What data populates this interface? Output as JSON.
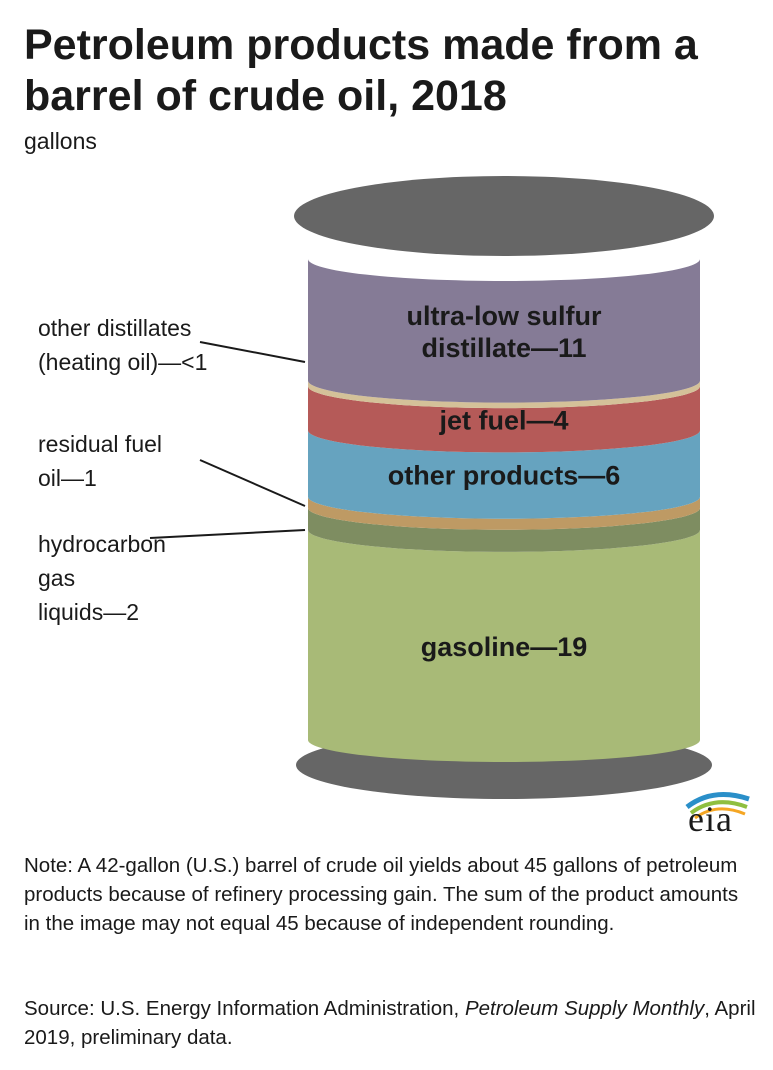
{
  "title": "Petroleum products made from a barrel of crude oil, 2018",
  "subtitle": "gallons",
  "chart_data": {
    "type": "bar",
    "title": "Petroleum products made from a barrel of crude oil, 2018",
    "unit": "gallons",
    "segments": [
      {
        "key": "ulsd",
        "label_lines": [
          "ultra-low sulfur",
          "distillate—11"
        ],
        "value": 11,
        "color": "#857b96"
      },
      {
        "key": "other_distillates",
        "label_lines": [
          "other distillates",
          "(heating oil)—<1"
        ],
        "value": 0.5,
        "color": "#d4c199"
      },
      {
        "key": "jet_fuel",
        "label_lines": [
          "jet fuel—4"
        ],
        "value": 4,
        "color": "#b55a58"
      },
      {
        "key": "other_products",
        "label_lines": [
          "other products—6"
        ],
        "value": 6,
        "color": "#66a3bf"
      },
      {
        "key": "residual_fuel",
        "label_lines": [
          "residual fuel",
          "oil—1"
        ],
        "value": 1,
        "color": "#be9a64"
      },
      {
        "key": "hgl",
        "label_lines": [
          "hydrocarbon",
          "gas",
          "liquids—2"
        ],
        "value": 2,
        "color": "#7e8d61"
      },
      {
        "key": "gasoline",
        "label_lines": [
          "gasoline—19"
        ],
        "value": 19,
        "color": "#a8ba77"
      }
    ],
    "barrel_color": "#666666"
  },
  "logo": {
    "text": "eia",
    "colors": {
      "blue": "#2a8fc9",
      "green": "#8fbf3f",
      "orange": "#f5a623"
    }
  },
  "note": "Note: A 42-gallon (U.S.) barrel of crude oil yields about 45 gallons of petroleum products because of refinery processing gain. The sum of the product amounts in the image may not equal 45 because of independent rounding.",
  "source": {
    "prefix": "Source: U.S. Energy Information Administration, ",
    "publication": "Petroleum Supply Monthly",
    "suffix": ", April 2019, preliminary data."
  }
}
